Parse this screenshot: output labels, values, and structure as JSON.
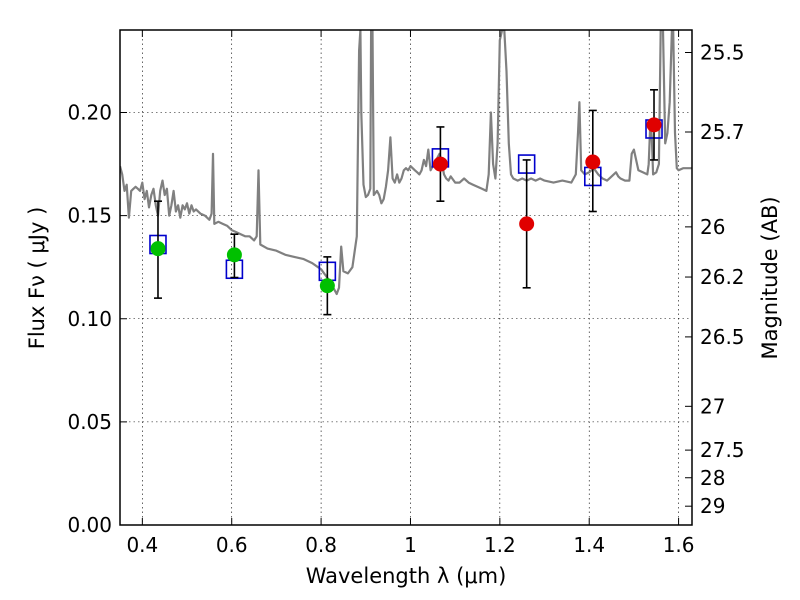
{
  "chart_data": {
    "type": "scatter",
    "xlabel": "Wavelength  λ (μm)",
    "ylabel": "Flux  Fν  ( μJy )",
    "ylabel_right": "Magnitude (AB)",
    "xlim": [
      0.35,
      1.63
    ],
    "ylim": [
      0.0,
      0.24
    ],
    "grid": true,
    "x_ticks": [
      {
        "value": 0.4,
        "label": "0.4"
      },
      {
        "value": 0.6,
        "label": "0.6"
      },
      {
        "value": 0.8,
        "label": "0.8"
      },
      {
        "value": 1.0,
        "label": "1"
      },
      {
        "value": 1.2,
        "label": "1.2"
      },
      {
        "value": 1.4,
        "label": "1.4"
      },
      {
        "value": 1.6,
        "label": "1.6"
      }
    ],
    "y_ticks": [
      {
        "value": 0.0,
        "label": "0.00"
      },
      {
        "value": 0.05,
        "label": "0.05"
      },
      {
        "value": 0.1,
        "label": "0.10"
      },
      {
        "value": 0.15,
        "label": "0.15"
      },
      {
        "value": 0.2,
        "label": "0.20"
      }
    ],
    "y2_ticks": [
      {
        "mag": 25.5,
        "label": "25.5"
      },
      {
        "mag": 25.7,
        "label": "25.7"
      },
      {
        "mag": 26.0,
        "label": "26"
      },
      {
        "mag": 26.2,
        "label": "26.2"
      },
      {
        "mag": 26.5,
        "label": "26.5"
      },
      {
        "mag": 27.0,
        "label": "27"
      },
      {
        "mag": 27.5,
        "label": "27.5"
      },
      {
        "mag": 28.0,
        "label": "28"
      },
      {
        "mag": 29.0,
        "label": "29"
      }
    ],
    "series": [
      {
        "marker": "circle",
        "color": "#00c000",
        "points": [
          {
            "x": 0.435,
            "y": 0.134,
            "yerr": [
              0.11,
              0.157
            ]
          },
          {
            "x": 0.606,
            "y": 0.131,
            "yerr": [
              0.12,
              0.141
            ]
          },
          {
            "x": 0.814,
            "y": 0.116,
            "yerr": [
              0.102,
              0.13
            ]
          }
        ]
      },
      {
        "marker": "circle",
        "color": "#e00000",
        "points": [
          {
            "x": 1.067,
            "y": 0.175,
            "yerr": [
              0.157,
              0.193
            ]
          },
          {
            "x": 1.26,
            "y": 0.146,
            "yerr": [
              0.115,
              0.177
            ]
          },
          {
            "x": 1.408,
            "y": 0.176,
            "yerr": [
              0.152,
              0.201
            ]
          },
          {
            "x": 1.545,
            "y": 0.194,
            "yerr": [
              0.177,
              0.211
            ]
          }
        ]
      },
      {
        "marker": "square-open",
        "color": "#0000cc",
        "points": [
          {
            "x": 0.435,
            "y": 0.136
          },
          {
            "x": 0.606,
            "y": 0.124
          },
          {
            "x": 0.814,
            "y": 0.123
          },
          {
            "x": 1.067,
            "y": 0.178
          },
          {
            "x": 1.26,
            "y": 0.175
          },
          {
            "x": 1.408,
            "y": 0.169
          },
          {
            "x": 1.545,
            "y": 0.192
          }
        ]
      },
      {
        "marker": "line",
        "color": "#808080",
        "points": [
          [
            0.35,
            0.174
          ],
          [
            0.355,
            0.17
          ],
          [
            0.36,
            0.162
          ],
          [
            0.365,
            0.165
          ],
          [
            0.37,
            0.149
          ],
          [
            0.375,
            0.162
          ],
          [
            0.38,
            0.163
          ],
          [
            0.385,
            0.164
          ],
          [
            0.39,
            0.163
          ],
          [
            0.395,
            0.162
          ],
          [
            0.4,
            0.166
          ],
          [
            0.405,
            0.158
          ],
          [
            0.41,
            0.162
          ],
          [
            0.415,
            0.154
          ],
          [
            0.42,
            0.16
          ],
          [
            0.425,
            0.163
          ],
          [
            0.43,
            0.155
          ],
          [
            0.435,
            0.15
          ],
          [
            0.44,
            0.162
          ],
          [
            0.445,
            0.167
          ],
          [
            0.45,
            0.16
          ],
          [
            0.455,
            0.163
          ],
          [
            0.46,
            0.15
          ],
          [
            0.465,
            0.155
          ],
          [
            0.47,
            0.162
          ],
          [
            0.475,
            0.152
          ],
          [
            0.48,
            0.155
          ],
          [
            0.485,
            0.149
          ],
          [
            0.49,
            0.155
          ],
          [
            0.495,
            0.153
          ],
          [
            0.5,
            0.156
          ],
          [
            0.505,
            0.151
          ],
          [
            0.51,
            0.155
          ],
          [
            0.515,
            0.152
          ],
          [
            0.52,
            0.153
          ],
          [
            0.53,
            0.151
          ],
          [
            0.54,
            0.15
          ],
          [
            0.55,
            0.148
          ],
          [
            0.555,
            0.151
          ],
          [
            0.558,
            0.18
          ],
          [
            0.561,
            0.146
          ],
          [
            0.57,
            0.147
          ],
          [
            0.58,
            0.146
          ],
          [
            0.59,
            0.145
          ],
          [
            0.6,
            0.143
          ],
          [
            0.61,
            0.142
          ],
          [
            0.62,
            0.141
          ],
          [
            0.63,
            0.14
          ],
          [
            0.64,
            0.14
          ],
          [
            0.65,
            0.138
          ],
          [
            0.656,
            0.14
          ],
          [
            0.66,
            0.172
          ],
          [
            0.664,
            0.136
          ],
          [
            0.68,
            0.134
          ],
          [
            0.7,
            0.133
          ],
          [
            0.72,
            0.131
          ],
          [
            0.74,
            0.13
          ],
          [
            0.76,
            0.129
          ],
          [
            0.78,
            0.127
          ],
          [
            0.8,
            0.124
          ],
          [
            0.81,
            0.121
          ],
          [
            0.82,
            0.118
          ],
          [
            0.83,
            0.114
          ],
          [
            0.835,
            0.112
          ],
          [
            0.84,
            0.115
          ],
          [
            0.845,
            0.135
          ],
          [
            0.85,
            0.123
          ],
          [
            0.86,
            0.122
          ],
          [
            0.87,
            0.125
          ],
          [
            0.88,
            0.14
          ],
          [
            0.885,
            0.23
          ],
          [
            0.888,
            0.24
          ],
          [
            0.89,
            0.2
          ],
          [
            0.895,
            0.165
          ],
          [
            0.9,
            0.159
          ],
          [
            0.905,
            0.16
          ],
          [
            0.91,
            0.163
          ],
          [
            0.912,
            0.24
          ],
          [
            0.915,
            0.24
          ],
          [
            0.918,
            0.16
          ],
          [
            0.925,
            0.162
          ],
          [
            0.93,
            0.16
          ],
          [
            0.935,
            0.156
          ],
          [
            0.94,
            0.158
          ],
          [
            0.945,
            0.164
          ],
          [
            0.95,
            0.172
          ],
          [
            0.955,
            0.188
          ],
          [
            0.96,
            0.168
          ],
          [
            0.965,
            0.166
          ],
          [
            0.97,
            0.17
          ],
          [
            0.975,
            0.166
          ],
          [
            0.98,
            0.168
          ],
          [
            0.985,
            0.172
          ],
          [
            0.99,
            0.173
          ],
          [
            0.995,
            0.172
          ],
          [
            1.0,
            0.174
          ],
          [
            1.005,
            0.173
          ],
          [
            1.01,
            0.172
          ],
          [
            1.015,
            0.171
          ],
          [
            1.02,
            0.17
          ],
          [
            1.025,
            0.172
          ],
          [
            1.03,
            0.177
          ],
          [
            1.035,
            0.174
          ],
          [
            1.04,
            0.182
          ],
          [
            1.045,
            0.172
          ],
          [
            1.05,
            0.174
          ],
          [
            1.055,
            0.175
          ],
          [
            1.06,
            0.178
          ],
          [
            1.065,
            0.18
          ],
          [
            1.07,
            0.176
          ],
          [
            1.075,
            0.17
          ],
          [
            1.08,
            0.168
          ],
          [
            1.085,
            0.167
          ],
          [
            1.09,
            0.169
          ],
          [
            1.1,
            0.166
          ],
          [
            1.11,
            0.166
          ],
          [
            1.12,
            0.168
          ],
          [
            1.13,
            0.166
          ],
          [
            1.14,
            0.165
          ],
          [
            1.15,
            0.164
          ],
          [
            1.16,
            0.163
          ],
          [
            1.17,
            0.162
          ],
          [
            1.175,
            0.17
          ],
          [
            1.18,
            0.2
          ],
          [
            1.185,
            0.175
          ],
          [
            1.19,
            0.168
          ],
          [
            1.195,
            0.185
          ],
          [
            1.2,
            0.235
          ],
          [
            1.205,
            0.24
          ],
          [
            1.21,
            0.24
          ],
          [
            1.215,
            0.22
          ],
          [
            1.22,
            0.185
          ],
          [
            1.225,
            0.17
          ],
          [
            1.23,
            0.168
          ],
          [
            1.24,
            0.167
          ],
          [
            1.25,
            0.168
          ],
          [
            1.26,
            0.167
          ],
          [
            1.27,
            0.168
          ],
          [
            1.28,
            0.167
          ],
          [
            1.29,
            0.168
          ],
          [
            1.3,
            0.167
          ],
          [
            1.32,
            0.166
          ],
          [
            1.34,
            0.167
          ],
          [
            1.36,
            0.166
          ],
          [
            1.37,
            0.17
          ],
          [
            1.375,
            0.19
          ],
          [
            1.378,
            0.205
          ],
          [
            1.382,
            0.172
          ],
          [
            1.39,
            0.17
          ],
          [
            1.4,
            0.171
          ],
          [
            1.41,
            0.173
          ],
          [
            1.42,
            0.17
          ],
          [
            1.43,
            0.168
          ],
          [
            1.44,
            0.167
          ],
          [
            1.45,
            0.169
          ],
          [
            1.46,
            0.171
          ],
          [
            1.465,
            0.169
          ],
          [
            1.47,
            0.168
          ],
          [
            1.48,
            0.167
          ],
          [
            1.49,
            0.167
          ],
          [
            1.495,
            0.18
          ],
          [
            1.5,
            0.182
          ],
          [
            1.51,
            0.172
          ],
          [
            1.52,
            0.171
          ],
          [
            1.53,
            0.17
          ],
          [
            1.533,
            0.175
          ],
          [
            1.537,
            0.196
          ],
          [
            1.54,
            0.188
          ],
          [
            1.543,
            0.17
          ],
          [
            1.55,
            0.171
          ],
          [
            1.556,
            0.175
          ],
          [
            1.56,
            0.24
          ],
          [
            1.565,
            0.24
          ],
          [
            1.57,
            0.185
          ],
          [
            1.575,
            0.19
          ],
          [
            1.58,
            0.205
          ],
          [
            1.585,
            0.24
          ],
          [
            1.588,
            0.24
          ],
          [
            1.592,
            0.19
          ],
          [
            1.596,
            0.173
          ],
          [
            1.6,
            0.172
          ],
          [
            1.61,
            0.173
          ],
          [
            1.62,
            0.173
          ],
          [
            1.63,
            0.173
          ]
        ]
      }
    ]
  }
}
